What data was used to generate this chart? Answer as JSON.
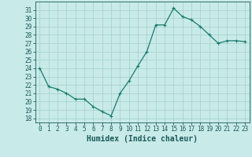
{
  "x": [
    0,
    1,
    2,
    3,
    4,
    5,
    6,
    7,
    8,
    9,
    10,
    11,
    12,
    13,
    14,
    15,
    16,
    17,
    18,
    19,
    20,
    21,
    22,
    23
  ],
  "y": [
    24.0,
    21.8,
    21.5,
    21.0,
    20.3,
    20.3,
    19.4,
    18.8,
    18.3,
    21.0,
    22.5,
    24.3,
    26.0,
    29.2,
    29.2,
    31.2,
    30.2,
    29.8,
    29.0,
    28.0,
    27.0,
    27.3,
    27.3,
    27.2
  ],
  "line_color": "#1a7a6e",
  "marker": "+",
  "bg_color": "#c8eae8",
  "grid_color": "#a8d4d0",
  "xlabel": "Humidex (Indice chaleur)",
  "xlim": [
    -0.5,
    23.5
  ],
  "ylim": [
    17.5,
    32.0
  ],
  "yticks": [
    18,
    19,
    20,
    21,
    22,
    23,
    24,
    25,
    26,
    27,
    28,
    29,
    30,
    31
  ],
  "xticks": [
    0,
    1,
    2,
    3,
    4,
    5,
    6,
    7,
    8,
    9,
    10,
    11,
    12,
    13,
    14,
    15,
    16,
    17,
    18,
    19,
    20,
    21,
    22,
    23
  ],
  "font_color": "#1a5a5a",
  "tick_fontsize": 5.5,
  "label_fontsize": 7.0,
  "linewidth": 0.9,
  "markersize": 3.0,
  "markeredgewidth": 0.8
}
